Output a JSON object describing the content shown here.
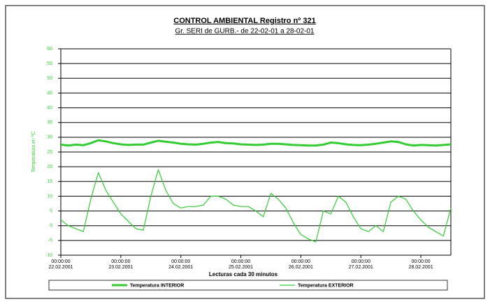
{
  "chart_data": {
    "type": "line",
    "title": "CONTROL AMBIENTAL Registro nº 321",
    "subtitle": "Gr. SERI de GURB.- de 22-02-01 a 28-02-01",
    "x_label": "Lecturas cada 30 minutos",
    "y_label": "Temperatura en ºC",
    "x": [
      "22.02.2001 00:00:00",
      "22.02.2001 03:00:00",
      "22.02.2001 06:00:00",
      "22.02.2001 09:00:00",
      "22.02.2001 12:00:00",
      "22.02.2001 15:00:00",
      "22.02.2001 18:00:00",
      "22.02.2001 21:00:00",
      "23.02.2001 00:00:00",
      "23.02.2001 03:00:00",
      "23.02.2001 06:00:00",
      "23.02.2001 09:00:00",
      "23.02.2001 12:00:00",
      "23.02.2001 15:00:00",
      "23.02.2001 18:00:00",
      "23.02.2001 21:00:00",
      "24.02.2001 00:00:00",
      "24.02.2001 03:00:00",
      "24.02.2001 06:00:00",
      "24.02.2001 09:00:00",
      "24.02.2001 12:00:00",
      "24.02.2001 15:00:00",
      "24.02.2001 18:00:00",
      "24.02.2001 21:00:00",
      "25.02.2001 00:00:00",
      "25.02.2001 03:00:00",
      "25.02.2001 06:00:00",
      "25.02.2001 09:00:00",
      "25.02.2001 12:00:00",
      "25.02.2001 15:00:00",
      "25.02.2001 18:00:00",
      "25.02.2001 21:00:00",
      "26.02.2001 00:00:00",
      "26.02.2001 03:00:00",
      "26.02.2001 06:00:00",
      "26.02.2001 09:00:00",
      "26.02.2001 12:00:00",
      "26.02.2001 15:00:00",
      "26.02.2001 18:00:00",
      "26.02.2001 21:00:00",
      "27.02.2001 00:00:00",
      "27.02.2001 03:00:00",
      "27.02.2001 06:00:00",
      "27.02.2001 09:00:00",
      "27.02.2001 12:00:00",
      "27.02.2001 15:00:00",
      "27.02.2001 18:00:00",
      "27.02.2001 21:00:00",
      "28.02.2001 00:00:00",
      "28.02.2001 03:00:00",
      "28.02.2001 06:00:00",
      "28.02.2001 09:00:00",
      "28.02.2001 12:00:00"
    ],
    "series": [
      {
        "name": "Temperatura INTERIOR",
        "color": "#33cc33",
        "width": 3,
        "values": [
          27.5,
          27.2,
          27.5,
          27.3,
          28,
          29,
          28.6,
          28,
          27.6,
          27.4,
          27.5,
          27.5,
          28.2,
          28.8,
          28.5,
          28.2,
          27.8,
          27.6,
          27.5,
          27.8,
          28.2,
          28.4,
          28,
          27.9,
          27.6,
          27.5,
          27.4,
          27.5,
          27.8,
          27.8,
          27.6,
          27.4,
          27.3,
          27.2,
          27.2,
          27.5,
          28.2,
          28,
          27.6,
          27.4,
          27.3,
          27.5,
          27.8,
          28.2,
          28.6,
          28.4,
          27.6,
          27.2,
          27.4,
          27.3,
          27.2,
          27.4,
          27.6
        ]
      },
      {
        "name": "Temperatura EXTERIOR",
        "color": "#33cc33",
        "width": 1.2,
        "values": [
          2,
          0,
          -1,
          -2,
          9,
          18,
          12,
          8,
          4,
          1.5,
          -1,
          -1.5,
          10,
          19,
          12,
          7.5,
          6,
          6.5,
          6.5,
          7,
          10,
          10,
          9,
          7,
          6.5,
          6.5,
          5,
          3,
          11,
          9,
          6,
          1,
          -3,
          -4.5,
          -5.5,
          5,
          4,
          10,
          8,
          3,
          -1,
          -2,
          0,
          -2,
          8,
          10,
          9,
          5,
          2,
          -0.5,
          -2,
          -3.5,
          6
        ]
      }
    ],
    "ylim": [
      -10,
      60
    ],
    "yticks": [
      -10,
      -5,
      0,
      5,
      10,
      15,
      20,
      25,
      30,
      35,
      40,
      45,
      50,
      55,
      60
    ],
    "grid": true,
    "xticks": [
      {
        "value": "22.02.2001 00:00:00",
        "label": [
          "00:00:00",
          "22.02.2001"
        ]
      },
      {
        "value": "23.02.2001 00:00:00",
        "label": [
          "00:00:00",
          "23.02.2001"
        ]
      },
      {
        "value": "24.02.2001 00:00:00",
        "label": [
          "00:00:00",
          "24.02.2001"
        ]
      },
      {
        "value": "25.02.2001 00:00:00",
        "label": [
          "00:00:00",
          "25.02.2001"
        ]
      },
      {
        "value": "26.02.2001 00:00:00",
        "label": [
          "00:00:00",
          "26.02.2001"
        ]
      },
      {
        "value": "27.02.2001 00:00:00",
        "label": [
          "00:00:00",
          "27.02.2001"
        ]
      },
      {
        "value": "28.02.2001 00:00:00",
        "label": [
          "00:00:00",
          "28.02.2001"
        ]
      }
    ],
    "tick_color": "#33cc33"
  }
}
